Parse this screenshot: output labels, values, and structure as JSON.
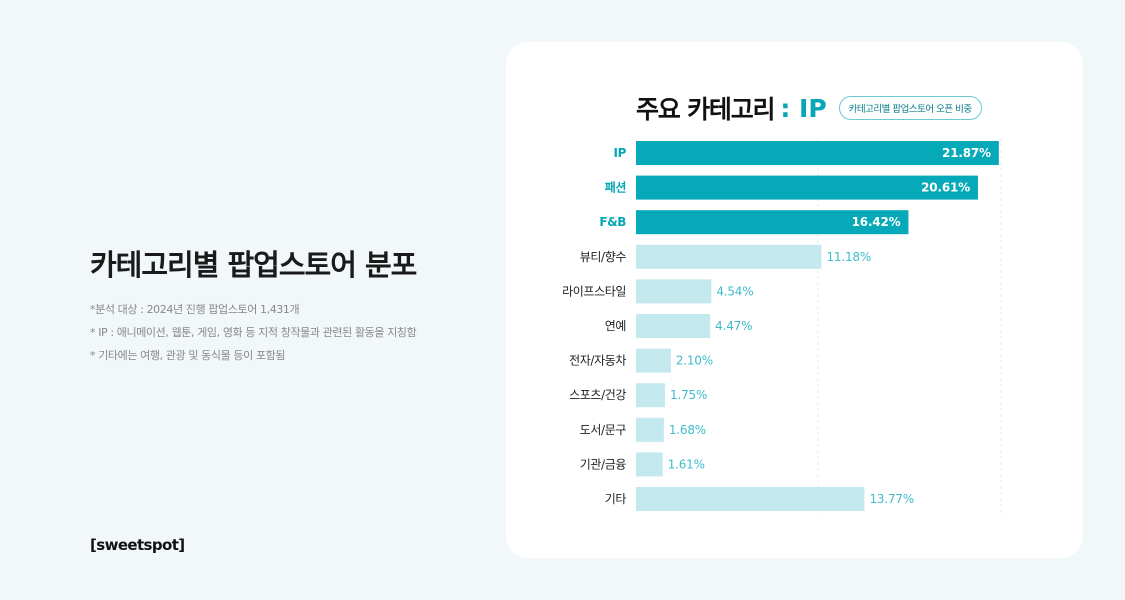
{
  "left": {
    "title": "카테고리별 팝업스토어 분포",
    "notes": [
      "*분석 대상 : 2024년 진행 팝업스토어 1,431개",
      "* IP : 애니메이션, 웹툰, 게임, 영화 등 지적 창작물과 관련된 활동을 지칭함",
      "* 기타에는 여행, 관광 및 동식물 등이 포함됨"
    ],
    "brand": "[sweetspot]"
  },
  "colors": {
    "highlight": "#05a9b7",
    "muted": "#c3e8ee",
    "highlight_text": "#05a6b5",
    "muted_text": "#3fbccb",
    "background": "#f2f8fa",
    "card": "#ffffff"
  },
  "chart_data": {
    "type": "bar",
    "orientation": "horizontal",
    "title": "주요 카테고리",
    "title_accent": ": IP",
    "badge": "카테고리별 팝업스토어 오픈 비중",
    "categories": [
      "IP",
      "패션",
      "F&B",
      "뷰티/향수",
      "라이프스타일",
      "연예",
      "전자/자동차",
      "스포츠/건강",
      "도서/문구",
      "기관/금융",
      "기타"
    ],
    "values": [
      21.87,
      20.61,
      16.42,
      11.18,
      4.54,
      4.47,
      2.1,
      1.75,
      1.68,
      1.61,
      13.77
    ],
    "value_labels": [
      "21.87%",
      "20.61%",
      "16.42%",
      "11.18%",
      "4.54%",
      "4.47%",
      "2.10%",
      "1.75%",
      "1.68%",
      "1.61%",
      "13.77%"
    ],
    "highlighted": [
      true,
      true,
      true,
      false,
      false,
      false,
      false,
      false,
      false,
      false,
      false
    ],
    "xlim": [
      0,
      22
    ],
    "unit": "%",
    "grid": "vertical dashed"
  }
}
